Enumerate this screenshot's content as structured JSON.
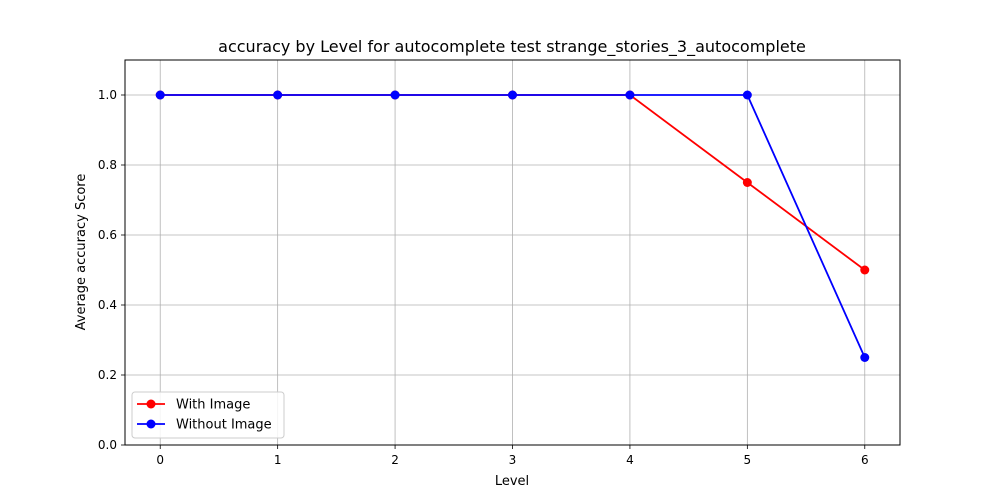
{
  "chart_data": {
    "type": "line",
    "title": "accuracy by Level for autocomplete test strange_stories_3_autocomplete",
    "xlabel": "Level",
    "ylabel": "Average accuracy Score",
    "x": [
      0,
      1,
      2,
      3,
      4,
      5,
      6
    ],
    "xlim": [
      -0.3,
      6.3
    ],
    "ylim": [
      0.0,
      1.1
    ],
    "xticks": [
      "0",
      "1",
      "2",
      "3",
      "4",
      "5",
      "6"
    ],
    "yticks": [
      "0.0",
      "0.2",
      "0.4",
      "0.6",
      "0.8",
      "1.0"
    ],
    "grid": true,
    "legend_position": "lower-left",
    "series": [
      {
        "name": "With Image",
        "color": "#ff0000",
        "values": [
          1.0,
          1.0,
          1.0,
          1.0,
          1.0,
          0.75,
          0.5
        ]
      },
      {
        "name": "Without Image",
        "color": "#0000ff",
        "values": [
          1.0,
          1.0,
          1.0,
          1.0,
          1.0,
          1.0,
          0.25
        ]
      }
    ]
  }
}
